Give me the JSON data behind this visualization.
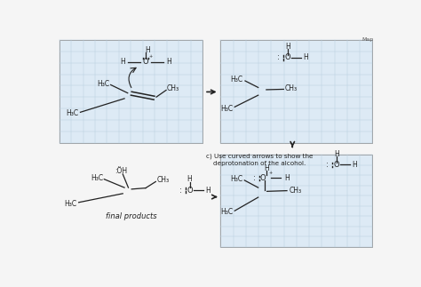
{
  "bg_color": "#f5f5f5",
  "grid_color": "#b8cfe0",
  "grid_bg": "#ddeaf5",
  "tc": "#222222",
  "panel_tl": [
    0.02,
    0.51,
    0.44,
    0.465
  ],
  "panel_tr": [
    0.515,
    0.51,
    0.465,
    0.465
  ],
  "panel_br": [
    0.515,
    0.04,
    0.465,
    0.415
  ],
  "label_c": "c) Use curved arrows to show the\ndeprotonation of the alcohol.",
  "label_final": "final products",
  "map_label": "Map"
}
